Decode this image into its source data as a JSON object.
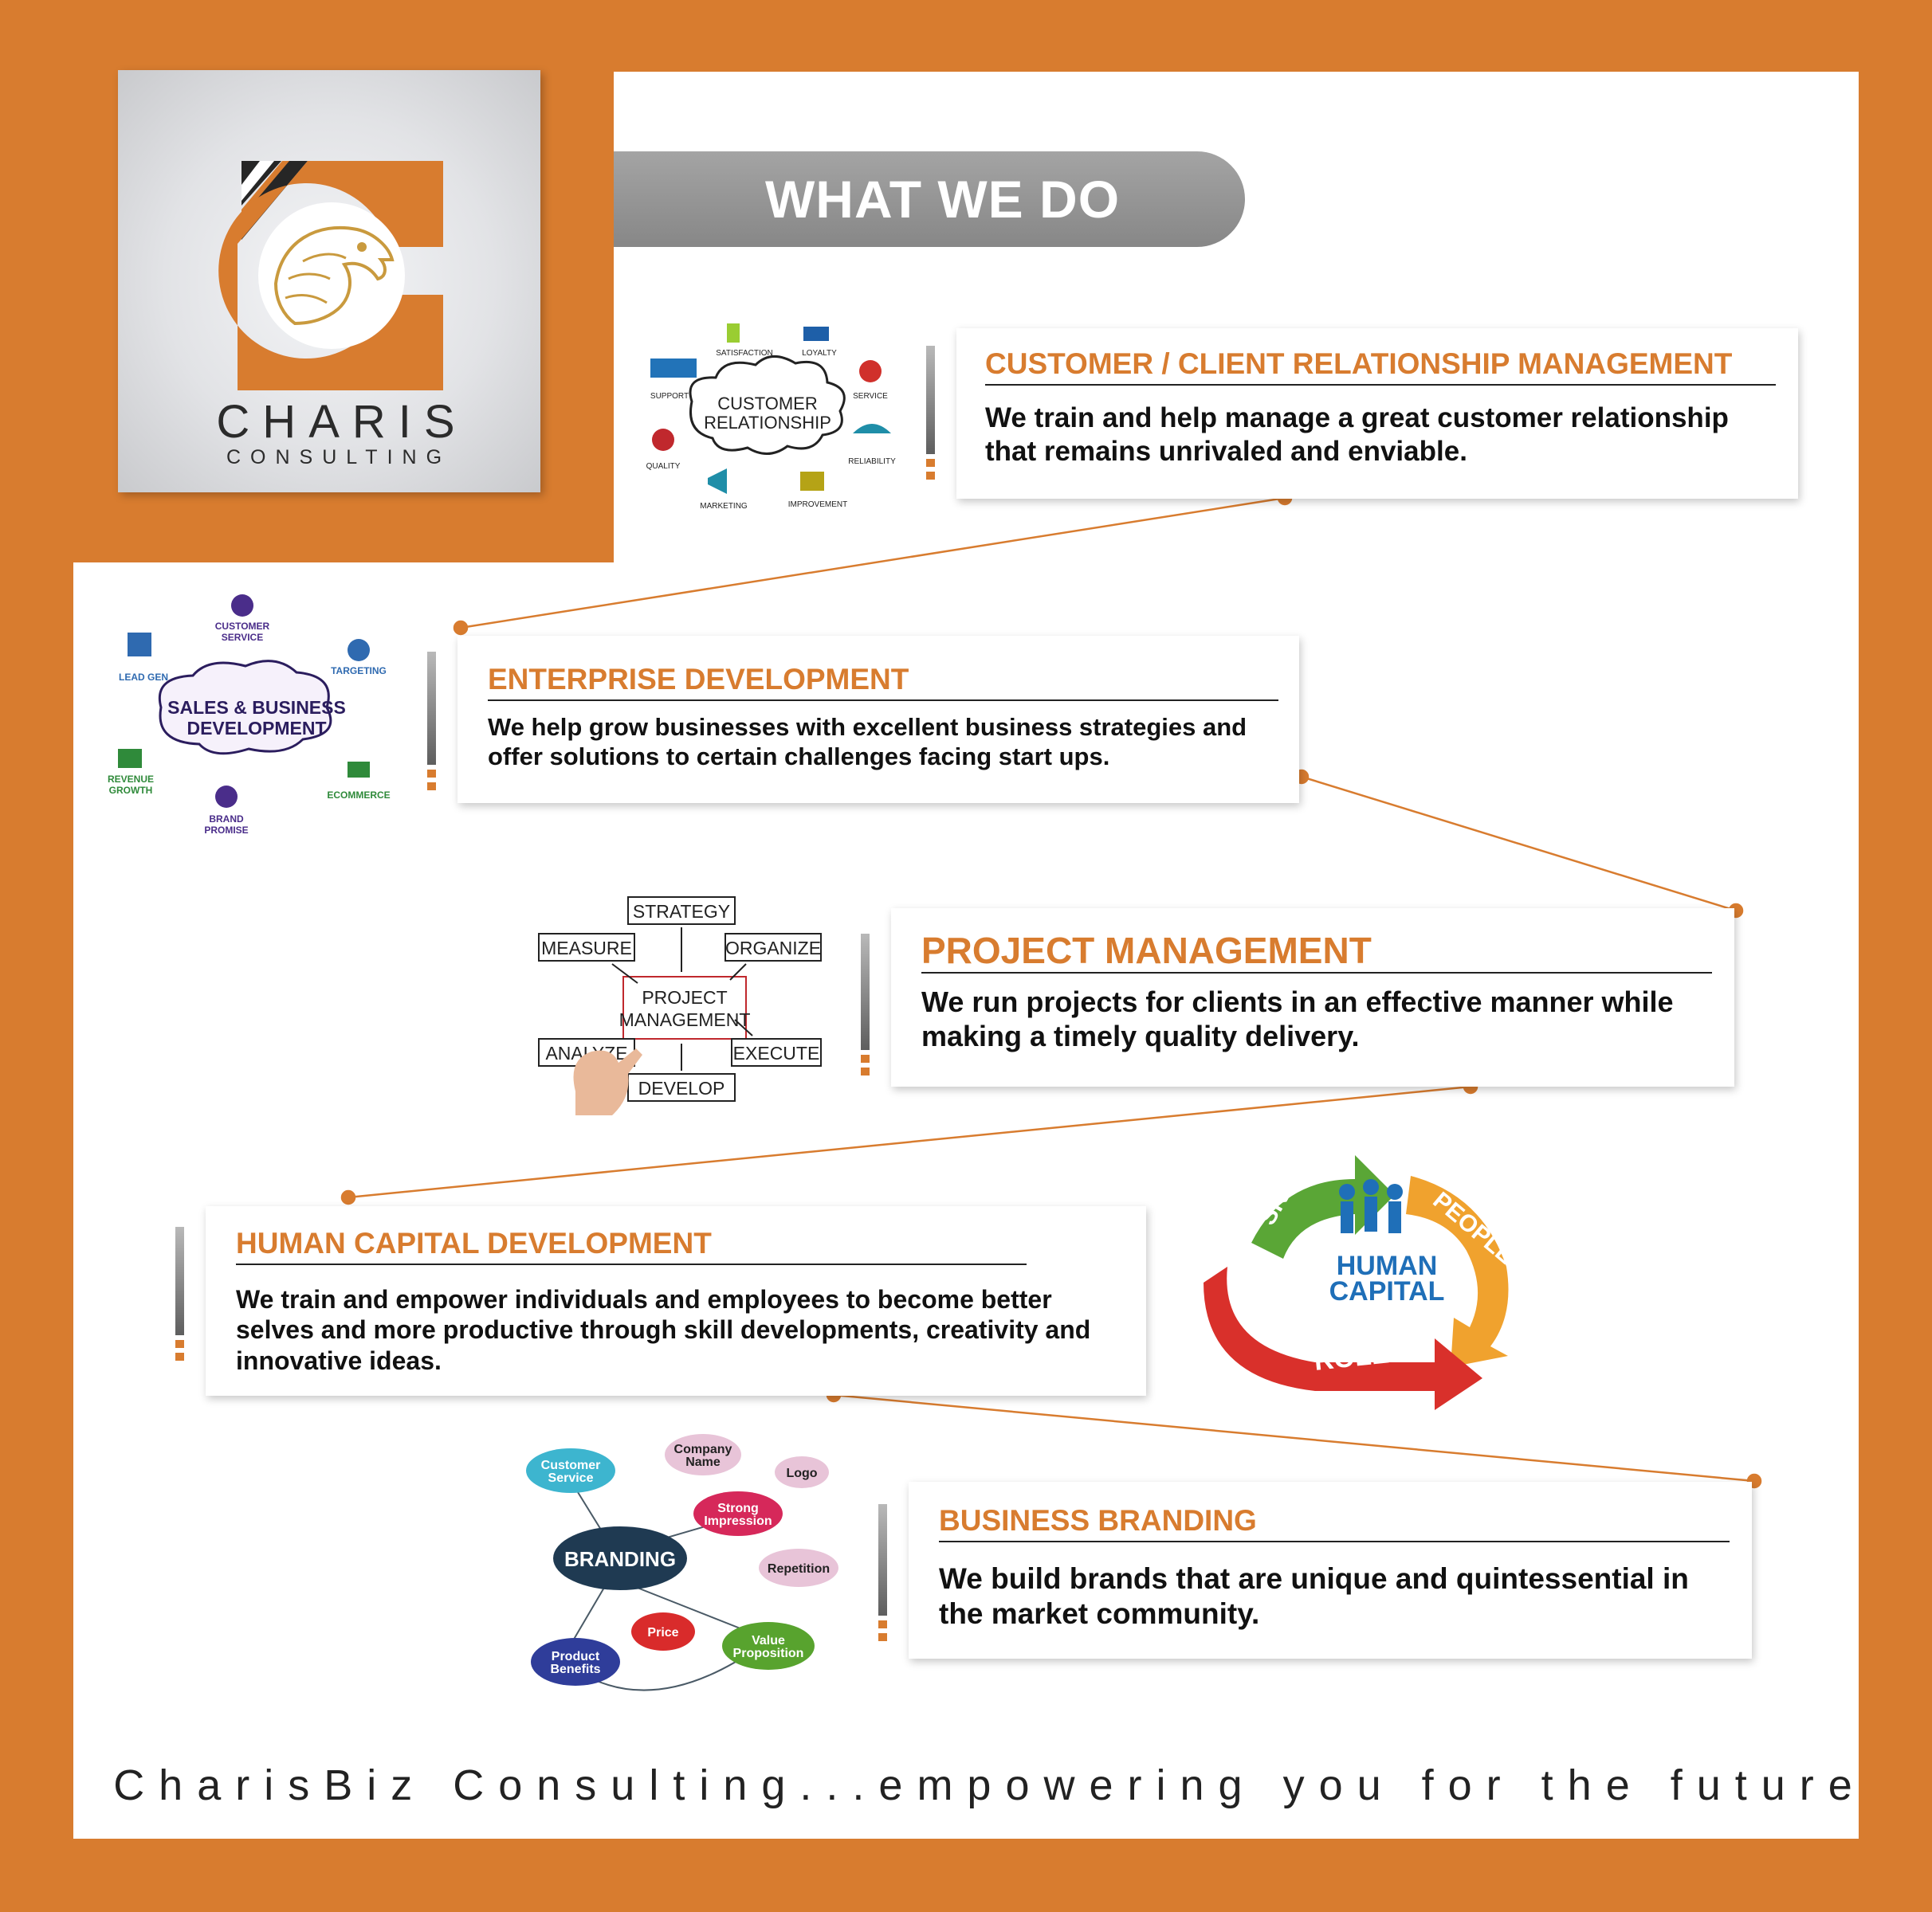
{
  "brand": {
    "name": "CHARIS",
    "subtitle": "CONSULTING"
  },
  "header": {
    "title": "WHAT WE DO"
  },
  "services": [
    {
      "title": "CUSTOMER / CLIENT RELATIONSHIP MANAGEMENT",
      "description": "We train and help manage a great customer relationship that remains unrivaled and enviable.",
      "illustration": {
        "center": [
          "CUSTOMER",
          "RELATIONSHIP"
        ],
        "labels": [
          "SATISFACTION",
          "LOYALTY",
          "SUPPORT",
          "SERVICE",
          "QUALITY",
          "RELIABILITY",
          "MARKETING",
          "IMPROVEMENT"
        ]
      }
    },
    {
      "title": "ENTERPRISE DEVELOPMENT",
      "description": "We help grow businesses with excellent business strategies and offer solutions to certain challenges facing start ups.",
      "illustration": {
        "center": [
          "SALES & BUSINESS",
          "DEVELOPMENT"
        ],
        "labels": [
          "CUSTOMER",
          "SERVICE",
          "LEAD GEN",
          "TARGETING",
          "REVENUE",
          "GROWTH",
          "ECOMMERCE",
          "BRAND",
          "PROMISE"
        ]
      }
    },
    {
      "title": "PROJECT MANAGEMENT",
      "description": "We run projects for clients in an effective manner while making a timely quality delivery.",
      "illustration": {
        "center": [
          "PROJECT",
          "MANAGEMENT"
        ],
        "labels": [
          "STRATEGY",
          "MEASURE",
          "ORGANIZE",
          "ANALYZE",
          "EXECUTE",
          "DEVELOP"
        ]
      }
    },
    {
      "title": "HUMAN CAPITAL DEVELOPMENT",
      "description": "We train and empower individuals and employees to become better selves and more productive through skill developments, creativity and innovative ideas.",
      "illustration": {
        "center": [
          "HUMAN",
          "CAPITAL"
        ],
        "labels": [
          "SKILLS",
          "PEOPLE",
          "ROLES"
        ]
      }
    },
    {
      "title": "BUSINESS BRANDING",
      "description": "We build brands that are unique and quintessential in the market community.",
      "illustration": {
        "center": "BRANDING",
        "labels": [
          "Customer",
          "Service",
          "Company",
          "Name",
          "Logo",
          "Strong",
          "Impression",
          "Repetition",
          "Price",
          "Value",
          "Proposition",
          "Product",
          "Benefits"
        ]
      }
    }
  ],
  "footer": {
    "tagline": "CharisBiz Consulting...empowering you for the future"
  },
  "colors": {
    "accent": "#D87C2F",
    "background": "#FFFFFF",
    "banner": "#8C8C8C",
    "text": "#111111"
  },
  "icons": [
    "eagle-logo-icon",
    "thumbs-up-icon",
    "cart-icon",
    "handshake-icon",
    "ribbon-icon",
    "umbrella-icon",
    "megaphone-icon",
    "chart-icon",
    "target-icon",
    "people-icon",
    "hand-icon"
  ]
}
